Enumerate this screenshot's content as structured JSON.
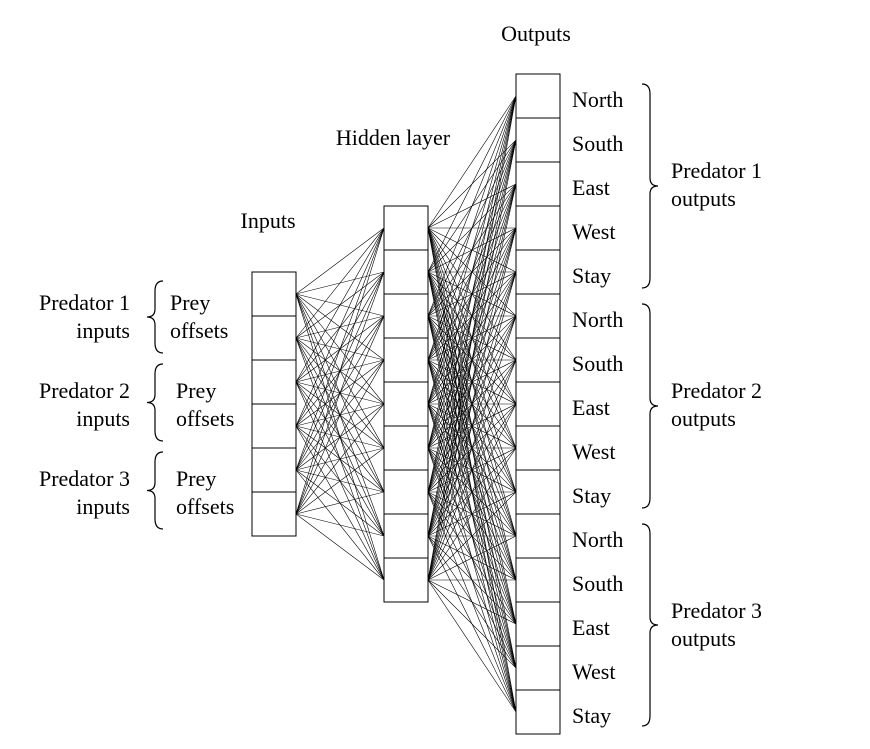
{
  "headers": {
    "inputs": "Inputs",
    "hidden": "Hidden layer",
    "outputs": "Outputs"
  },
  "input_groups": [
    {
      "predator_line1": "Predator 1",
      "predator_line2": "inputs",
      "offset_line1": "Prey",
      "offset_line2": "offsets"
    },
    {
      "predator_line1": "Predator 2",
      "predator_line2": "inputs",
      "offset_line1": "Prey",
      "offset_line2": "offsets"
    },
    {
      "predator_line1": "Predator 3",
      "predator_line2": "inputs",
      "offset_line1": "Prey",
      "offset_line2": "offsets"
    }
  ],
  "output_groups": [
    {
      "label_line1": "Predator 1",
      "label_line2": "outputs",
      "actions": [
        "North",
        "South",
        "East",
        "West",
        "Stay"
      ]
    },
    {
      "label_line1": "Predator 2",
      "label_line2": "outputs",
      "actions": [
        "North",
        "South",
        "East",
        "West",
        "Stay"
      ]
    },
    {
      "label_line1": "Predator 3",
      "label_line2": "outputs",
      "actions": [
        "North",
        "South",
        "East",
        "West",
        "Stay"
      ]
    }
  ],
  "layer_sizes": {
    "inputs": 6,
    "hidden": 9,
    "outputs": 15
  }
}
